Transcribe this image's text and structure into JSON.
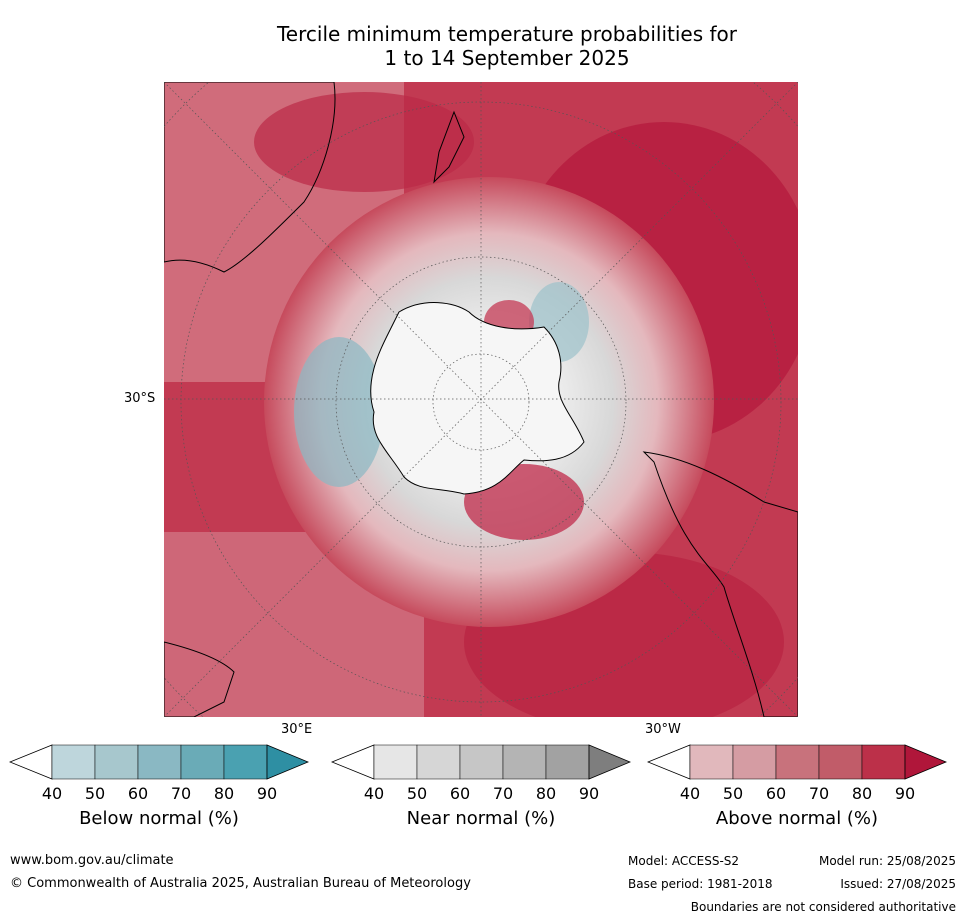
{
  "title": {
    "line1": "Tercile minimum temperature probabilities for",
    "line2": "1 to 14 September 2025"
  },
  "map": {
    "lat_label": "30°S",
    "lon_label_left": "30°E",
    "lon_label_right": "30°W"
  },
  "legend": {
    "below": {
      "title": "Below normal (%)",
      "ticks": [
        "40",
        "50",
        "60",
        "70",
        "80",
        "90"
      ],
      "colors": [
        "#bed6dc",
        "#a7c7cd",
        "#8ab8c3",
        "#6aabb7",
        "#4aa1b1",
        "#2e8fa3"
      ]
    },
    "near": {
      "title": "Near normal (%)",
      "ticks": [
        "40",
        "50",
        "60",
        "70",
        "80",
        "90"
      ],
      "colors": [
        "#e6e6e6",
        "#d6d6d6",
        "#c6c6c6",
        "#b4b4b4",
        "#a2a2a2",
        "#7e7e7e"
      ]
    },
    "above": {
      "title": "Above normal (%)",
      "ticks": [
        "40",
        "50",
        "60",
        "70",
        "80",
        "90"
      ],
      "colors": [
        "#e1b8bc",
        "#d59ca3",
        "#c8727c",
        "#c15c69",
        "#bc3049",
        "#b0163a"
      ]
    }
  },
  "footer": {
    "website": "www.bom.gov.au/climate",
    "copyright": "© Commonwealth of Australia 2025, Australian Bureau of Meteorology",
    "model": "Model: ACCESS-S2",
    "model_run": "Model run: 25/08/2025",
    "base_period": "Base period: 1981-2018",
    "issued": "Issued: 27/08/2025",
    "disclaimer": "Boundaries are not considered authoritative"
  }
}
